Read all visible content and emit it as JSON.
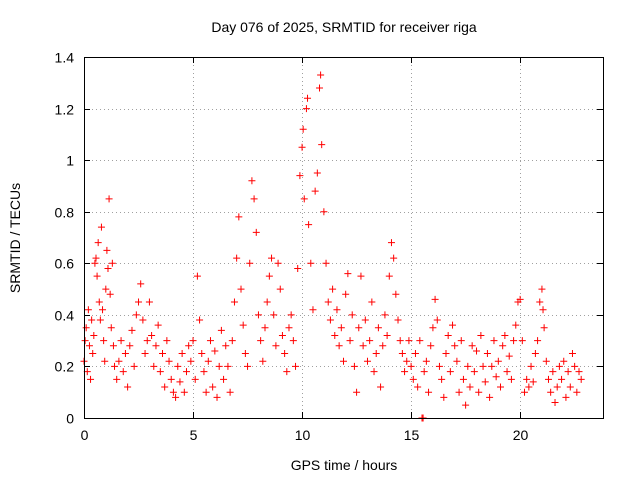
{
  "chart_data": {
    "type": "scatter",
    "title": "Day 076 of 2025, SRMTID for receiver riga",
    "xlabel": "GPS time / hours",
    "ylabel": "SRMTID / TECUs",
    "xlim": [
      0,
      23.8
    ],
    "ylim": [
      0,
      1.4
    ],
    "x_ticks": [
      0,
      5,
      10,
      15,
      20
    ],
    "x_tick_labels": [
      "0",
      "5",
      "10",
      "15",
      "20"
    ],
    "y_ticks": [
      0,
      0.2,
      0.4,
      0.6,
      0.8,
      1.0,
      1.2,
      1.4
    ],
    "y_tick_labels": [
      "0",
      "0.2",
      "0.4",
      "0.6",
      "0.8",
      "1",
      "1.2",
      "1.4"
    ],
    "grid": true,
    "marker": "plus",
    "color": "#ff0000",
    "series": [
      {
        "name": "SRMTID",
        "points": [
          [
            0.0,
            0.22
          ],
          [
            0.05,
            0.3
          ],
          [
            0.1,
            0.35
          ],
          [
            0.15,
            0.18
          ],
          [
            0.2,
            0.42
          ],
          [
            0.25,
            0.28
          ],
          [
            0.3,
            0.15
          ],
          [
            0.35,
            0.38
          ],
          [
            0.4,
            0.25
          ],
          [
            0.45,
            0.32
          ],
          [
            0.5,
            0.6
          ],
          [
            0.55,
            0.62
          ],
          [
            0.6,
            0.55
          ],
          [
            0.65,
            0.68
          ],
          [
            0.7,
            0.45
          ],
          [
            0.75,
            0.38
          ],
          [
            0.8,
            0.74
          ],
          [
            0.85,
            0.42
          ],
          [
            0.9,
            0.3
          ],
          [
            0.95,
            0.22
          ],
          [
            1.0,
            0.5
          ],
          [
            1.05,
            0.65
          ],
          [
            1.1,
            0.58
          ],
          [
            1.15,
            0.85
          ],
          [
            1.2,
            0.48
          ],
          [
            1.25,
            0.35
          ],
          [
            1.3,
            0.6
          ],
          [
            1.35,
            0.28
          ],
          [
            1.4,
            0.2
          ],
          [
            1.5,
            0.15
          ],
          [
            1.6,
            0.22
          ],
          [
            1.7,
            0.3
          ],
          [
            1.8,
            0.18
          ],
          [
            1.9,
            0.25
          ],
          [
            2.0,
            0.12
          ],
          [
            2.1,
            0.28
          ],
          [
            2.2,
            0.34
          ],
          [
            2.3,
            0.2
          ],
          [
            2.4,
            0.4
          ],
          [
            2.5,
            0.45
          ],
          [
            2.6,
            0.52
          ],
          [
            2.7,
            0.38
          ],
          [
            2.8,
            0.25
          ],
          [
            2.9,
            0.3
          ],
          [
            3.0,
            0.45
          ],
          [
            3.1,
            0.32
          ],
          [
            3.2,
            0.2
          ],
          [
            3.3,
            0.28
          ],
          [
            3.4,
            0.36
          ],
          [
            3.5,
            0.18
          ],
          [
            3.6,
            0.25
          ],
          [
            3.7,
            0.12
          ],
          [
            3.8,
            0.3
          ],
          [
            3.9,
            0.22
          ],
          [
            4.0,
            0.15
          ],
          [
            4.1,
            0.1
          ],
          [
            4.2,
            0.08
          ],
          [
            4.3,
            0.2
          ],
          [
            4.4,
            0.14
          ],
          [
            4.5,
            0.25
          ],
          [
            4.6,
            0.1
          ],
          [
            4.7,
            0.18
          ],
          [
            4.8,
            0.28
          ],
          [
            4.9,
            0.22
          ],
          [
            5.0,
            0.3
          ],
          [
            5.1,
            0.15
          ],
          [
            5.2,
            0.55
          ],
          [
            5.3,
            0.38
          ],
          [
            5.4,
            0.25
          ],
          [
            5.5,
            0.18
          ],
          [
            5.6,
            0.1
          ],
          [
            5.7,
            0.22
          ],
          [
            5.8,
            0.3
          ],
          [
            5.9,
            0.12
          ],
          [
            6.0,
            0.26
          ],
          [
            6.1,
            0.08
          ],
          [
            6.2,
            0.2
          ],
          [
            6.3,
            0.34
          ],
          [
            6.4,
            0.15
          ],
          [
            6.5,
            0.28
          ],
          [
            6.6,
            0.2
          ],
          [
            6.7,
            0.1
          ],
          [
            6.8,
            0.3
          ],
          [
            6.9,
            0.45
          ],
          [
            7.0,
            0.62
          ],
          [
            7.1,
            0.78
          ],
          [
            7.2,
            0.5
          ],
          [
            7.3,
            0.36
          ],
          [
            7.4,
            0.25
          ],
          [
            7.5,
            0.2
          ],
          [
            7.6,
            0.6
          ],
          [
            7.7,
            0.92
          ],
          [
            7.8,
            0.85
          ],
          [
            7.9,
            0.72
          ],
          [
            8.0,
            0.4
          ],
          [
            8.1,
            0.3
          ],
          [
            8.2,
            0.22
          ],
          [
            8.3,
            0.35
          ],
          [
            8.4,
            0.45
          ],
          [
            8.5,
            0.55
          ],
          [
            8.6,
            0.62
          ],
          [
            8.7,
            0.4
          ],
          [
            8.8,
            0.28
          ],
          [
            8.9,
            0.6
          ],
          [
            9.0,
            0.5
          ],
          [
            9.1,
            0.32
          ],
          [
            9.2,
            0.25
          ],
          [
            9.3,
            0.18
          ],
          [
            9.4,
            0.35
          ],
          [
            9.5,
            0.4
          ],
          [
            9.6,
            0.3
          ],
          [
            9.7,
            0.2
          ],
          [
            9.8,
            0.58
          ],
          [
            9.9,
            0.94
          ],
          [
            10.0,
            1.05
          ],
          [
            10.05,
            1.12
          ],
          [
            10.1,
            0.85
          ],
          [
            10.2,
            1.2
          ],
          [
            10.25,
            1.24
          ],
          [
            10.3,
            0.75
          ],
          [
            10.4,
            0.6
          ],
          [
            10.5,
            0.42
          ],
          [
            10.6,
            0.88
          ],
          [
            10.7,
            0.95
          ],
          [
            10.8,
            1.28
          ],
          [
            10.85,
            1.33
          ],
          [
            10.9,
            1.06
          ],
          [
            11.0,
            0.8
          ],
          [
            11.1,
            0.6
          ],
          [
            11.2,
            0.45
          ],
          [
            11.3,
            0.38
          ],
          [
            11.4,
            0.5
          ],
          [
            11.5,
            0.32
          ],
          [
            11.6,
            0.42
          ],
          [
            11.7,
            0.28
          ],
          [
            11.8,
            0.35
          ],
          [
            11.9,
            0.22
          ],
          [
            12.0,
            0.48
          ],
          [
            12.1,
            0.56
          ],
          [
            12.2,
            0.3
          ],
          [
            12.3,
            0.4
          ],
          [
            12.4,
            0.2
          ],
          [
            12.5,
            0.1
          ],
          [
            12.6,
            0.35
          ],
          [
            12.7,
            0.55
          ],
          [
            12.8,
            0.28
          ],
          [
            12.9,
            0.38
          ],
          [
            13.0,
            0.22
          ],
          [
            13.1,
            0.3
          ],
          [
            13.2,
            0.45
          ],
          [
            13.3,
            0.18
          ],
          [
            13.4,
            0.25
          ],
          [
            13.5,
            0.35
          ],
          [
            13.6,
            0.12
          ],
          [
            13.7,
            0.28
          ],
          [
            13.8,
            0.4
          ],
          [
            13.9,
            0.32
          ],
          [
            14.0,
            0.55
          ],
          [
            14.1,
            0.68
          ],
          [
            14.2,
            0.62
          ],
          [
            14.3,
            0.48
          ],
          [
            14.4,
            0.38
          ],
          [
            14.5,
            0.3
          ],
          [
            14.6,
            0.25
          ],
          [
            14.7,
            0.18
          ],
          [
            14.8,
            0.22
          ],
          [
            14.9,
            0.3
          ],
          [
            15.0,
            0.2
          ],
          [
            15.1,
            0.15
          ],
          [
            15.2,
            0.25
          ],
          [
            15.3,
            0.12
          ],
          [
            15.4,
            0.3
          ],
          [
            15.5,
            0.0
          ],
          [
            15.55,
            0.0
          ],
          [
            15.6,
            0.18
          ],
          [
            15.7,
            0.22
          ],
          [
            15.8,
            0.1
          ],
          [
            15.9,
            0.28
          ],
          [
            16.0,
            0.35
          ],
          [
            16.1,
            0.46
          ],
          [
            16.2,
            0.38
          ],
          [
            16.3,
            0.2
          ],
          [
            16.4,
            0.15
          ],
          [
            16.5,
            0.08
          ],
          [
            16.6,
            0.25
          ],
          [
            16.7,
            0.32
          ],
          [
            16.8,
            0.18
          ],
          [
            16.9,
            0.36
          ],
          [
            17.0,
            0.28
          ],
          [
            17.1,
            0.22
          ],
          [
            17.2,
            0.1
          ],
          [
            17.3,
            0.3
          ],
          [
            17.4,
            0.15
          ],
          [
            17.5,
            0.05
          ],
          [
            17.6,
            0.2
          ],
          [
            17.7,
            0.12
          ],
          [
            17.8,
            0.28
          ],
          [
            17.9,
            0.18
          ],
          [
            18.0,
            0.26
          ],
          [
            18.1,
            0.1
          ],
          [
            18.2,
            0.32
          ],
          [
            18.3,
            0.2
          ],
          [
            18.4,
            0.14
          ],
          [
            18.5,
            0.25
          ],
          [
            18.6,
            0.08
          ],
          [
            18.7,
            0.2
          ],
          [
            18.8,
            0.3
          ],
          [
            18.9,
            0.16
          ],
          [
            19.0,
            0.22
          ],
          [
            19.1,
            0.12
          ],
          [
            19.2,
            0.28
          ],
          [
            19.3,
            0.32
          ],
          [
            19.4,
            0.18
          ],
          [
            19.5,
            0.24
          ],
          [
            19.6,
            0.15
          ],
          [
            19.7,
            0.3
          ],
          [
            19.8,
            0.36
          ],
          [
            19.9,
            0.45
          ],
          [
            20.0,
            0.46
          ],
          [
            20.1,
            0.3
          ],
          [
            20.2,
            0.1
          ],
          [
            20.3,
            0.15
          ],
          [
            20.4,
            0.12
          ],
          [
            20.5,
            0.2
          ],
          [
            20.6,
            0.14
          ],
          [
            20.7,
            0.25
          ],
          [
            20.8,
            0.3
          ],
          [
            20.9,
            0.45
          ],
          [
            21.0,
            0.5
          ],
          [
            21.05,
            0.42
          ],
          [
            21.1,
            0.35
          ],
          [
            21.2,
            0.22
          ],
          [
            21.3,
            0.15
          ],
          [
            21.4,
            0.1
          ],
          [
            21.5,
            0.18
          ],
          [
            21.6,
            0.06
          ],
          [
            21.7,
            0.12
          ],
          [
            21.8,
            0.2
          ],
          [
            21.9,
            0.15
          ],
          [
            22.0,
            0.22
          ],
          [
            22.1,
            0.08
          ],
          [
            22.2,
            0.18
          ],
          [
            22.3,
            0.12
          ],
          [
            22.4,
            0.25
          ],
          [
            22.5,
            0.2
          ],
          [
            22.6,
            0.1
          ],
          [
            22.7,
            0.18
          ],
          [
            22.8,
            0.15
          ]
        ]
      }
    ]
  }
}
